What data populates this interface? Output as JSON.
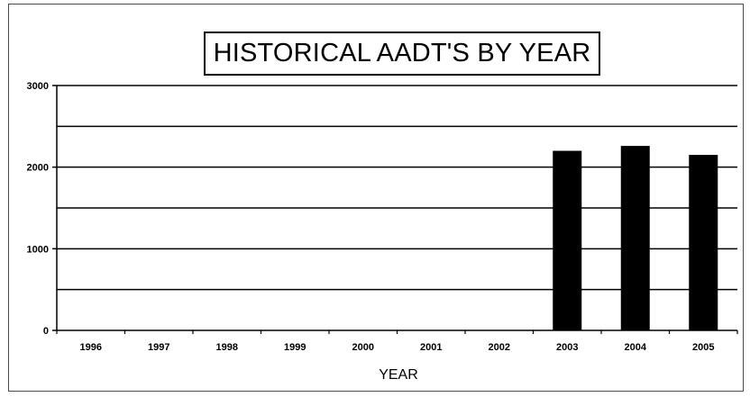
{
  "chart_data": {
    "type": "bar",
    "title": "HISTORICAL AADT'S BY YEAR",
    "xlabel": "YEAR",
    "ylabel": "",
    "categories": [
      "1996",
      "1997",
      "1998",
      "1999",
      "2000",
      "2001",
      "2002",
      "2003",
      "2004",
      "2005"
    ],
    "values": [
      null,
      null,
      null,
      null,
      null,
      null,
      null,
      2200,
      2260,
      2150
    ],
    "ylim": [
      0,
      3000
    ],
    "yticks": [
      0,
      1000,
      2000,
      3000
    ],
    "ytick_labels": [
      "0",
      "1000",
      "2000",
      "3000"
    ],
    "grid": true,
    "legend": "none",
    "bar_color": "#000000"
  }
}
